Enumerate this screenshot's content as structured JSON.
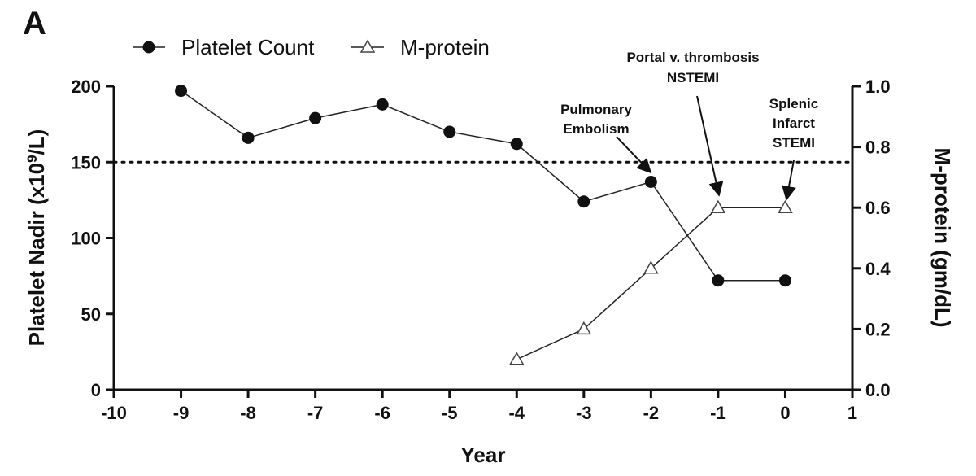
{
  "panel_label": "A",
  "chart_data": {
    "type": "line",
    "xlabel": "Year",
    "ylabel_left_main": "Platelet Nadir  (x10",
    "ylabel_left_sup": "9",
    "ylabel_left_tail": "/L)",
    "ylabel_right": "M-protein (gm/dL)",
    "xlim": [
      -10,
      1
    ],
    "xticks": [
      "-10",
      "-9",
      "-8",
      "-7",
      "-6",
      "-5",
      "-4",
      "-3",
      "-2",
      "-1",
      "0",
      "1"
    ],
    "ylim_left": [
      0,
      200
    ],
    "yticks_left": [
      "0",
      "50",
      "100",
      "150",
      "200"
    ],
    "ylim_right": [
      0,
      1.0
    ],
    "yticks_right": [
      "0.0",
      "0.2",
      "0.4",
      "0.6",
      "0.8",
      "1.0"
    ],
    "reference_line": {
      "axis": "left",
      "y": 150,
      "style": "dotted"
    },
    "legend_position": "top-left",
    "series": [
      {
        "name": "Platelet Count",
        "axis": "left",
        "marker": "filled-circle",
        "x": [
          -9,
          -8,
          -7,
          -6,
          -5,
          -4,
          -3,
          -2,
          -1,
          0
        ],
        "y": [
          197,
          166,
          179,
          188,
          170,
          162,
          124,
          137,
          72,
          72
        ]
      },
      {
        "name": "M-protein",
        "axis": "right",
        "marker": "open-triangle",
        "x": [
          -4,
          -3,
          -2,
          -1,
          0
        ],
        "y": [
          0.1,
          0.2,
          0.4,
          0.6,
          0.6
        ]
      }
    ],
    "annotations": [
      {
        "lines": [
          "Pulmonary",
          "Embolism"
        ],
        "x": -2,
        "series": "Platelet Count"
      },
      {
        "lines": [
          "Portal v. thrombosis",
          "NSTEMI"
        ],
        "x": -1,
        "series": "M-protein"
      },
      {
        "lines": [
          "Splenic",
          "Infarct",
          "STEMI"
        ],
        "x": 0,
        "series": "M-protein"
      }
    ],
    "grid": false
  }
}
